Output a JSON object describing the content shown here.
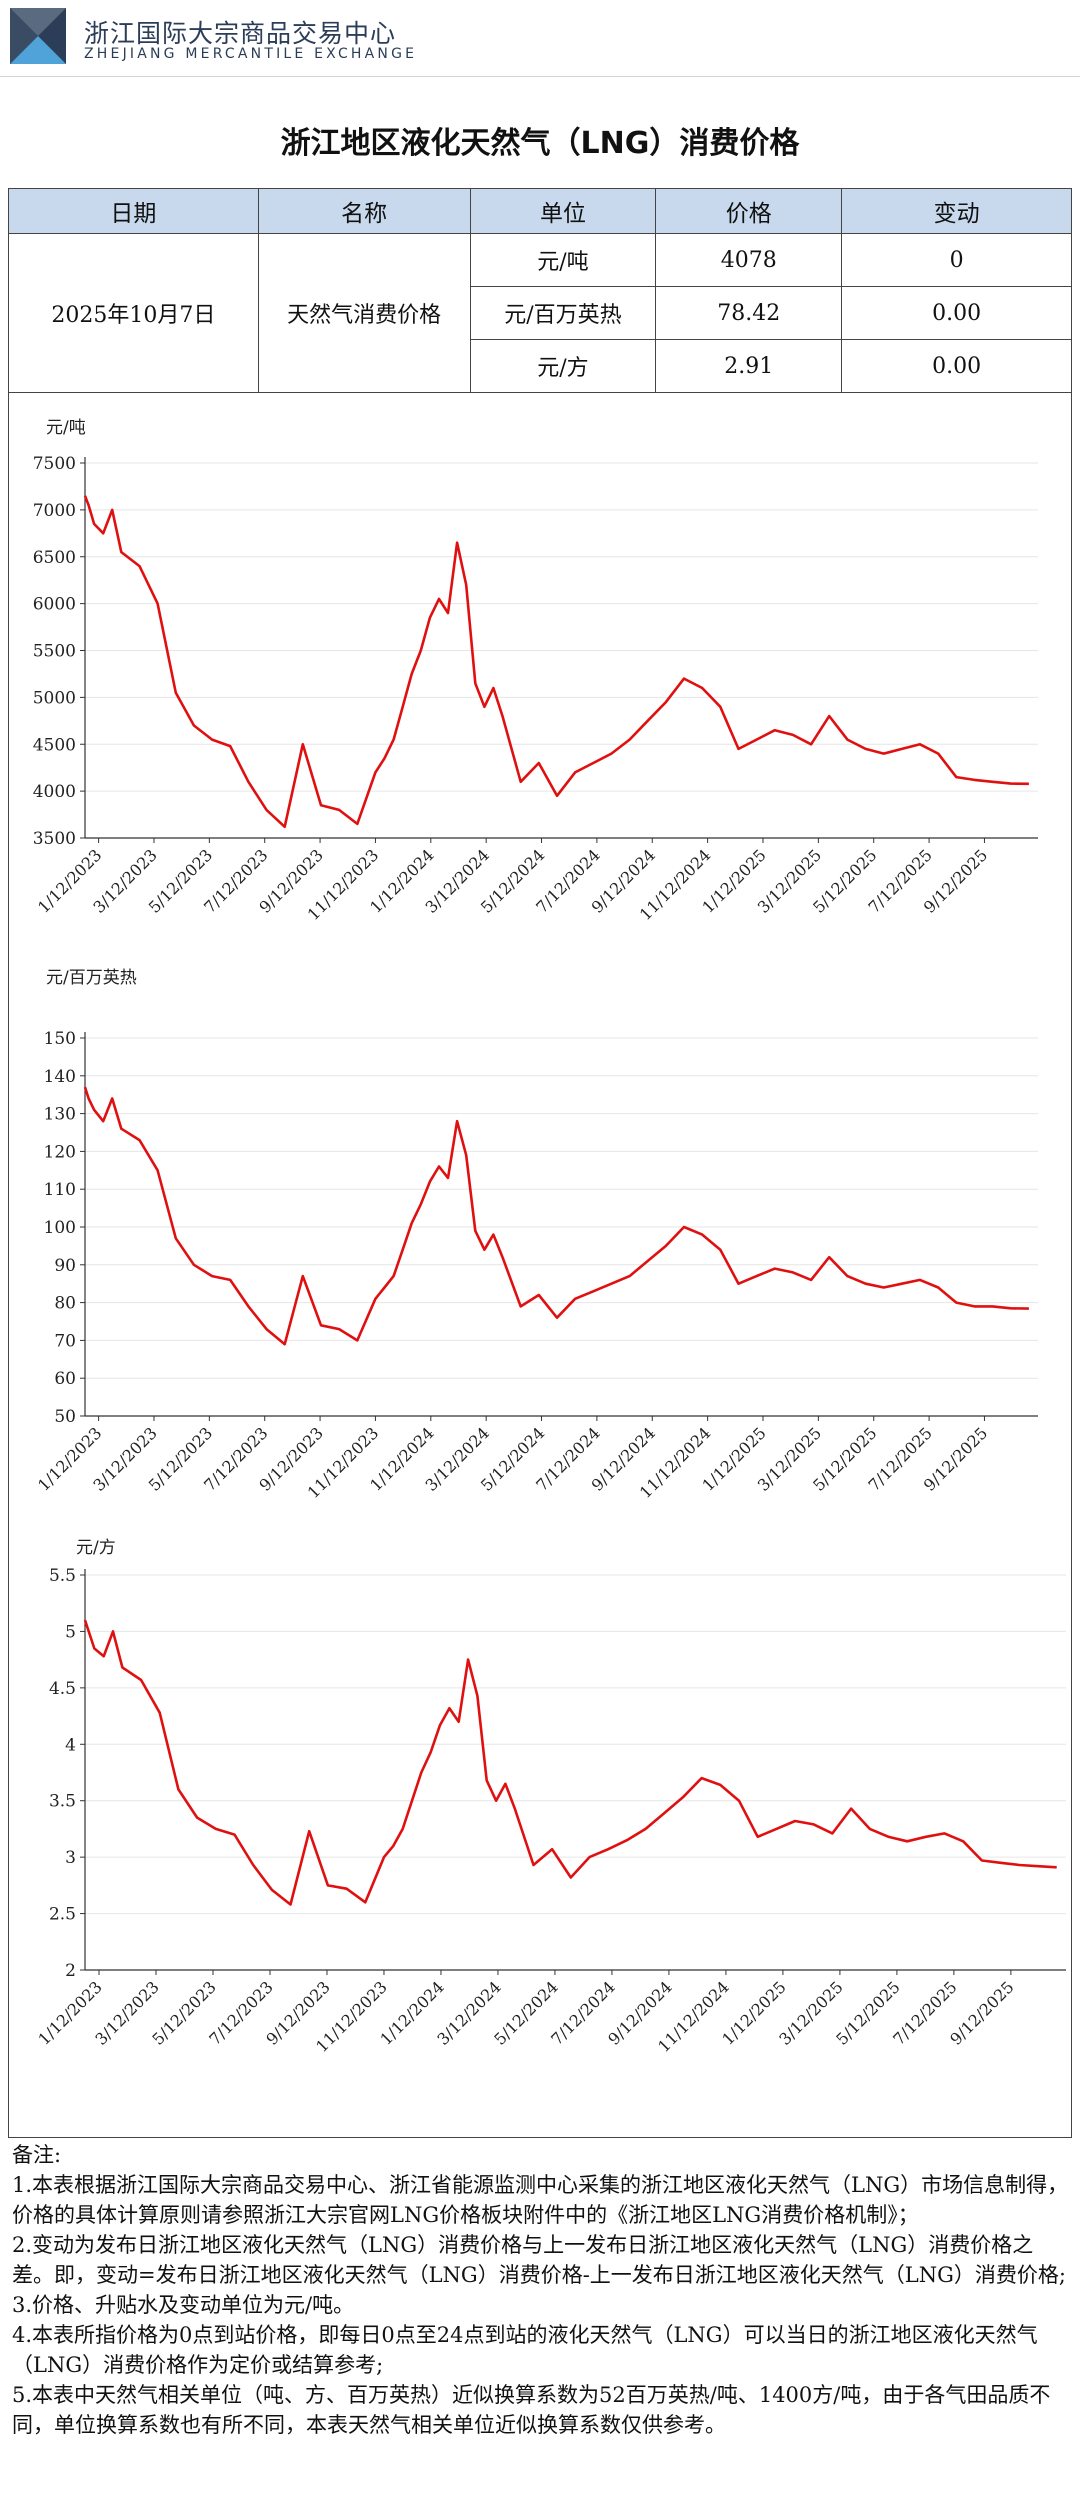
{
  "brand": {
    "name_cn": "浙江国际大宗商品交易中心",
    "name_en": "ZHEJIANG MERCANTILE EXCHANGE",
    "colors": {
      "navy": "#2c3e57",
      "cyan": "#4fa3d8",
      "line": "#e01010",
      "header_bg": "#c8d9ee"
    }
  },
  "title": "浙江地区液化天然气（LNG）消费价格",
  "table": {
    "headers": [
      "日期",
      "名称",
      "单位",
      "价格",
      "变动"
    ],
    "date": "2025年10月7日",
    "name": "天然气消费价格",
    "rows": [
      {
        "unit": "元/吨",
        "price": "4078",
        "change": "0"
      },
      {
        "unit": "元/百万英热",
        "price": "78.42",
        "change": "0.00"
      },
      {
        "unit": "元/方",
        "price": "2.91",
        "change": "0.00"
      }
    ]
  },
  "chart_data": [
    {
      "type": "line",
      "ylabel": "元/吨",
      "ylim": [
        3500,
        7500
      ],
      "yticks": [
        "3500",
        "4000",
        "4500",
        "5000",
        "5500",
        "6000",
        "6500",
        "7000",
        "7500"
      ],
      "xticks": [
        "1/12/2023",
        "3/12/2023",
        "5/12/2023",
        "7/12/2023",
        "9/12/2023",
        "11/12/2023",
        "1/12/2024",
        "3/12/2024",
        "5/12/2024",
        "7/12/2024",
        "9/12/2024",
        "11/12/2024",
        "1/12/2025",
        "3/12/2025",
        "5/12/2025",
        "7/12/2025",
        "9/12/2025"
      ],
      "series": [
        {
          "name": "元/吨",
          "x": [
            0,
            0.4,
            1,
            2,
            3,
            4,
            6,
            8,
            10,
            12,
            14,
            16,
            18,
            20,
            22,
            24,
            26,
            28,
            30,
            32,
            33,
            34,
            35,
            36,
            37,
            38,
            39,
            40,
            41,
            42,
            43,
            44,
            45,
            46,
            48,
            50,
            52,
            54,
            56,
            58,
            60,
            62,
            64,
            66,
            68,
            70,
            72,
            74,
            76,
            78,
            80,
            82,
            84,
            86,
            88,
            90,
            92,
            94,
            96,
            98,
            100,
            102,
            104
          ],
          "values": [
            7150,
            7050,
            6850,
            6750,
            7000,
            6550,
            6400,
            6000,
            5050,
            4700,
            4550,
            4480,
            4100,
            3800,
            3620,
            4500,
            3850,
            3800,
            3650,
            4200,
            4350,
            4550,
            4900,
            5250,
            5500,
            5850,
            6050,
            5900,
            6650,
            6200,
            5150,
            4900,
            5100,
            4800,
            4100,
            4300,
            3950,
            4200,
            4300,
            4400,
            4550,
            4750,
            4950,
            5200,
            5100,
            4900,
            4450,
            4550,
            4650,
            4600,
            4500,
            4800,
            4550,
            4450,
            4400,
            4450,
            4500,
            4400,
            4150,
            4120,
            4100,
            4080,
            4078
          ]
        }
      ]
    },
    {
      "type": "line",
      "ylabel": "元/百万英热",
      "ylim": [
        50,
        150
      ],
      "yticks": [
        "50",
        "60",
        "70",
        "80",
        "90",
        "100",
        "110",
        "120",
        "130",
        "140",
        "150"
      ],
      "xticks": [
        "1/12/2023",
        "3/12/2023",
        "5/12/2023",
        "7/12/2023",
        "9/12/2023",
        "11/12/2023",
        "1/12/2024",
        "3/12/2024",
        "5/12/2024",
        "7/12/2024",
        "9/12/2024",
        "11/12/2024",
        "1/12/2025",
        "3/12/2025",
        "5/12/2025",
        "7/12/2025",
        "9/12/2025"
      ],
      "series": [
        {
          "name": "元/百万英热",
          "x": [
            0,
            0.4,
            1,
            2,
            3,
            4,
            6,
            8,
            10,
            12,
            14,
            16,
            18,
            20,
            22,
            24,
            26,
            28,
            30,
            32,
            33,
            34,
            35,
            36,
            37,
            38,
            39,
            40,
            41,
            42,
            43,
            44,
            45,
            46,
            48,
            50,
            52,
            54,
            56,
            58,
            60,
            62,
            64,
            66,
            68,
            70,
            72,
            74,
            76,
            78,
            80,
            82,
            84,
            86,
            88,
            90,
            92,
            94,
            96,
            98,
            100,
            102,
            104
          ],
          "values": [
            137,
            134,
            131,
            128,
            134,
            126,
            123,
            115,
            97,
            90,
            87,
            86,
            79,
            73,
            69,
            87,
            74,
            73,
            70,
            81,
            84,
            87,
            94,
            101,
            106,
            112,
            116,
            113,
            128,
            119,
            99,
            94,
            98,
            92,
            79,
            82,
            76,
            81,
            83,
            85,
            87,
            91,
            95,
            100,
            98,
            94,
            85,
            87,
            89,
            88,
            86,
            92,
            87,
            85,
            84,
            85,
            86,
            84,
            80,
            79,
            79,
            78.5,
            78.42
          ]
        }
      ]
    },
    {
      "type": "line",
      "ylabel": "元/方",
      "ylim": [
        2,
        5.5
      ],
      "yticks": [
        "2",
        "2.5",
        "3",
        "3.5",
        "4",
        "4.5",
        "5",
        "5.5"
      ],
      "xticks": [
        "1/12/2023",
        "3/12/2023",
        "5/12/2023",
        "7/12/2023",
        "9/12/2023",
        "11/12/2023",
        "1/12/2024",
        "3/12/2024",
        "5/12/2024",
        "7/12/2024",
        "9/12/2024",
        "11/12/2024",
        "1/12/2025",
        "3/12/2025",
        "5/12/2025",
        "7/12/2025",
        "9/12/2025"
      ],
      "series": [
        {
          "name": "元/方",
          "x": [
            0,
            0.4,
            1,
            2,
            3,
            4,
            6,
            8,
            10,
            12,
            14,
            16,
            18,
            20,
            22,
            24,
            26,
            28,
            30,
            32,
            33,
            34,
            35,
            36,
            37,
            38,
            39,
            40,
            41,
            42,
            43,
            44,
            45,
            46,
            48,
            50,
            52,
            54,
            56,
            58,
            60,
            62,
            64,
            66,
            68,
            70,
            72,
            74,
            76,
            78,
            80,
            82,
            84,
            86,
            88,
            90,
            92,
            94,
            96,
            98,
            100,
            102,
            104
          ],
          "values": [
            5.1,
            5.0,
            4.85,
            4.78,
            5.0,
            4.68,
            4.57,
            4.28,
            3.6,
            3.35,
            3.25,
            3.2,
            2.93,
            2.71,
            2.58,
            3.23,
            2.75,
            2.72,
            2.6,
            3.0,
            3.1,
            3.25,
            3.5,
            3.75,
            3.93,
            4.17,
            4.32,
            4.2,
            4.75,
            4.43,
            3.68,
            3.5,
            3.65,
            3.43,
            2.93,
            3.07,
            2.82,
            3.0,
            3.07,
            3.15,
            3.25,
            3.39,
            3.53,
            3.7,
            3.64,
            3.5,
            3.18,
            3.25,
            3.32,
            3.29,
            3.21,
            3.43,
            3.25,
            3.18,
            3.14,
            3.18,
            3.21,
            3.14,
            2.97,
            2.95,
            2.93,
            2.92,
            2.91
          ]
        }
      ]
    }
  ],
  "notes": {
    "label": "备注:",
    "items": [
      "1.本表根据浙江国际大宗商品交易中心、浙江省能源监测中心采集的浙江地区液化天然气（LNG）市场信息制得，价格的具体计算原则请参照浙江大宗官网LNG价格板块附件中的《浙江地区LNG消费价格机制》；",
      "2.变动为发布日浙江地区液化天然气（LNG）消费价格与上一发布日浙江地区液化天然气（LNG）消费价格之差。即，变动=发布日浙江地区液化天然气（LNG）消费价格-上一发布日浙江地区液化天然气（LNG）消费价格;",
      "3.价格、升贴水及变动单位为元/吨。",
      "4.本表所指价格为0点到站价格，即每日0点至24点到站的液化天然气（LNG）可以当日的浙江地区液化天然气（LNG）消费价格作为定价或结算参考;",
      "5.本表中天然气相关单位（吨、方、百万英热）近似换算系数为52百万英热/吨、1400方/吨，由于各气田品质不同，单位换算系数也有所不同，本表天然气相关单位近似换算系数仅供参考。"
    ]
  }
}
